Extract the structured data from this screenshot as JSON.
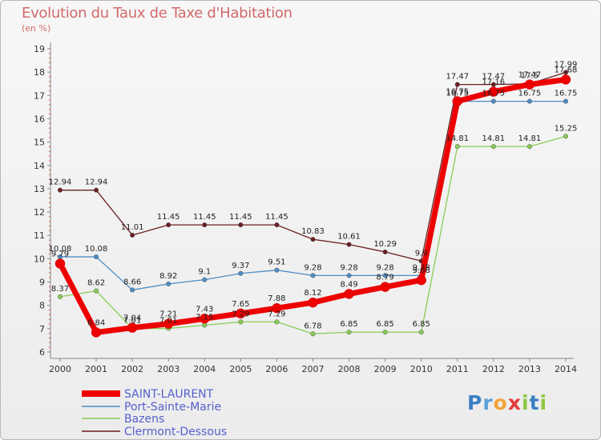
{
  "header": {
    "title": "Evolution du Taux de Taxe d'Habitation",
    "subtitle": "(en %)"
  },
  "logo": {
    "text": "Proxiti"
  },
  "chart_data": {
    "type": "line",
    "title": "Evolution du Taux de Taxe d'Habitation",
    "ylabel": "(en %)",
    "xlabel": "",
    "x": [
      "2000",
      "2001",
      "2002",
      "2003",
      "2004",
      "2005",
      "2006",
      "2007",
      "2008",
      "2009",
      "2010",
      "2011",
      "2012",
      "2013",
      "2014"
    ],
    "ylim": [
      6,
      19
    ],
    "yticks": [
      "6",
      "7",
      "8",
      "9",
      "10",
      "11",
      "12",
      "13",
      "14",
      "15",
      "16",
      "17",
      "18",
      "19"
    ],
    "grid": false,
    "legend_position": "bottom-left",
    "series": [
      {
        "name": "Clermont-Dessous",
        "color": "#6b1f22",
        "values": [
          12.94,
          12.94,
          11.01,
          11.45,
          11.45,
          11.45,
          11.45,
          10.83,
          10.61,
          10.29,
          9.9,
          17.47,
          17.47,
          17.5,
          17.99
        ],
        "labels": [
          "12.94",
          "12.94",
          "11.01",
          "11.45",
          "11.45",
          "11.45",
          "11.45",
          "10.83",
          "10.61",
          "10.29",
          "9.9",
          "17.47",
          "17.47",
          "17.5",
          "17.99"
        ]
      },
      {
        "name": "Port-Sainte-Marie",
        "color": "#4d8cc4",
        "values": [
          10.08,
          10.08,
          8.66,
          8.92,
          9.1,
          9.37,
          9.51,
          9.28,
          9.28,
          9.28,
          9.28,
          16.75,
          16.75,
          16.75,
          16.75
        ],
        "labels": [
          "10.08",
          "10.08",
          "8.66",
          "8.92",
          "9.1",
          "9.37",
          "9.51",
          "9.28",
          "9.28",
          "9.28",
          "9.28",
          "16.75",
          "16.75",
          "16.75",
          "16.75"
        ]
      },
      {
        "name": "Bazens",
        "color": "#88cc55",
        "values": [
          8.37,
          8.62,
          7.01,
          7.01,
          7.15,
          7.29,
          7.29,
          6.78,
          6.85,
          6.85,
          6.85,
          14.81,
          14.81,
          14.81,
          15.25
        ],
        "labels": [
          "8.37",
          "8.62",
          "7.01",
          "7.01",
          "7.15",
          "7.29",
          "7.29",
          "6.78",
          "6.85",
          "6.85",
          "6.85",
          "14.81",
          "14.81",
          "14.81",
          "15.25"
        ]
      },
      {
        "name": "SAINT-LAURENT",
        "color": "#ee0000",
        "values": [
          9.79,
          6.84,
          7.04,
          7.21,
          7.43,
          7.65,
          7.88,
          8.12,
          8.49,
          8.79,
          9.08,
          16.75,
          17.16,
          17.47,
          17.68
        ],
        "labels": [
          "9.79",
          "6.84",
          "7.04",
          "7.21",
          "7.43",
          "7.65",
          "7.88",
          "8.12",
          "8.49",
          "8.79",
          "9.08",
          "16.75",
          "17.16",
          "17.47",
          "17.68"
        ]
      }
    ],
    "legend": [
      "SAINT-LAURENT",
      "Port-Sainte-Marie",
      "Bazens",
      "Clermont-Dessous"
    ]
  }
}
